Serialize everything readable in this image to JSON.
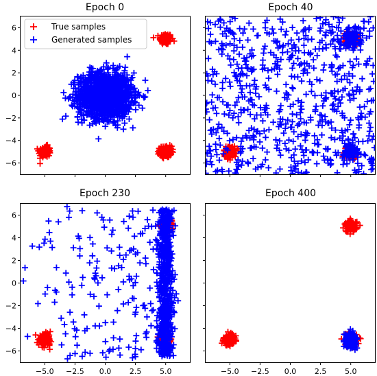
{
  "colors": {
    "true": "#ff0000",
    "generated": "#0000ff"
  },
  "chart_data": {
    "type": "scatter",
    "marker": "plus",
    "xlim": [
      -7,
      7
    ],
    "ylim": [
      -7,
      7
    ],
    "x_ticks": [
      -5.0,
      -2.5,
      0.0,
      2.5,
      5.0
    ],
    "x_tick_labels": [
      "−5.0",
      "−2.5",
      "0.0",
      "2.5",
      "5.0"
    ],
    "y_ticks": [
      -6,
      -4,
      -2,
      0,
      2,
      4,
      6
    ],
    "y_tick_labels": [
      "−6",
      "−4",
      "−2",
      "0",
      "2",
      "4",
      "6"
    ],
    "shared_axes": true,
    "grid": false,
    "legend": {
      "panel": 0,
      "location": "upper-left",
      "entries": [
        {
          "label": "True samples",
          "color": "#ff0000"
        },
        {
          "label": "Generated samples",
          "color": "#0000ff"
        }
      ]
    },
    "true_samples": {
      "clusters": [
        {
          "center": [
            5.0,
            5.0
          ],
          "std": 0.25,
          "count": 120
        },
        {
          "center": [
            -5.0,
            -5.0
          ],
          "std": 0.25,
          "count": 120
        },
        {
          "center": [
            5.0,
            -5.0
          ],
          "std": 0.25,
          "count": 120
        }
      ]
    },
    "panels": [
      {
        "title": "Epoch 0",
        "generated": {
          "kind": "gaussian",
          "center": [
            0.0,
            0.0
          ],
          "std": [
            1.1,
            1.0
          ],
          "count": 1500
        }
      },
      {
        "title": "Epoch 40",
        "generated": {
          "kind": "spread",
          "x_range": [
            -7,
            7
          ],
          "y_range": [
            -7,
            7
          ],
          "count": 700
        }
      },
      {
        "title": "Epoch 230",
        "generated": {
          "kind": "collapse",
          "column_x": 5.0,
          "column_std": 0.3,
          "column_y_range": [
            -6.5,
            6.5
          ],
          "column_count": 700,
          "scatter_count": 180
        }
      },
      {
        "title": "Epoch 400",
        "generated": {
          "kind": "gaussian",
          "center": [
            5.0,
            -5.0
          ],
          "std": [
            0.22,
            0.3
          ],
          "count": 300
        }
      }
    ]
  }
}
